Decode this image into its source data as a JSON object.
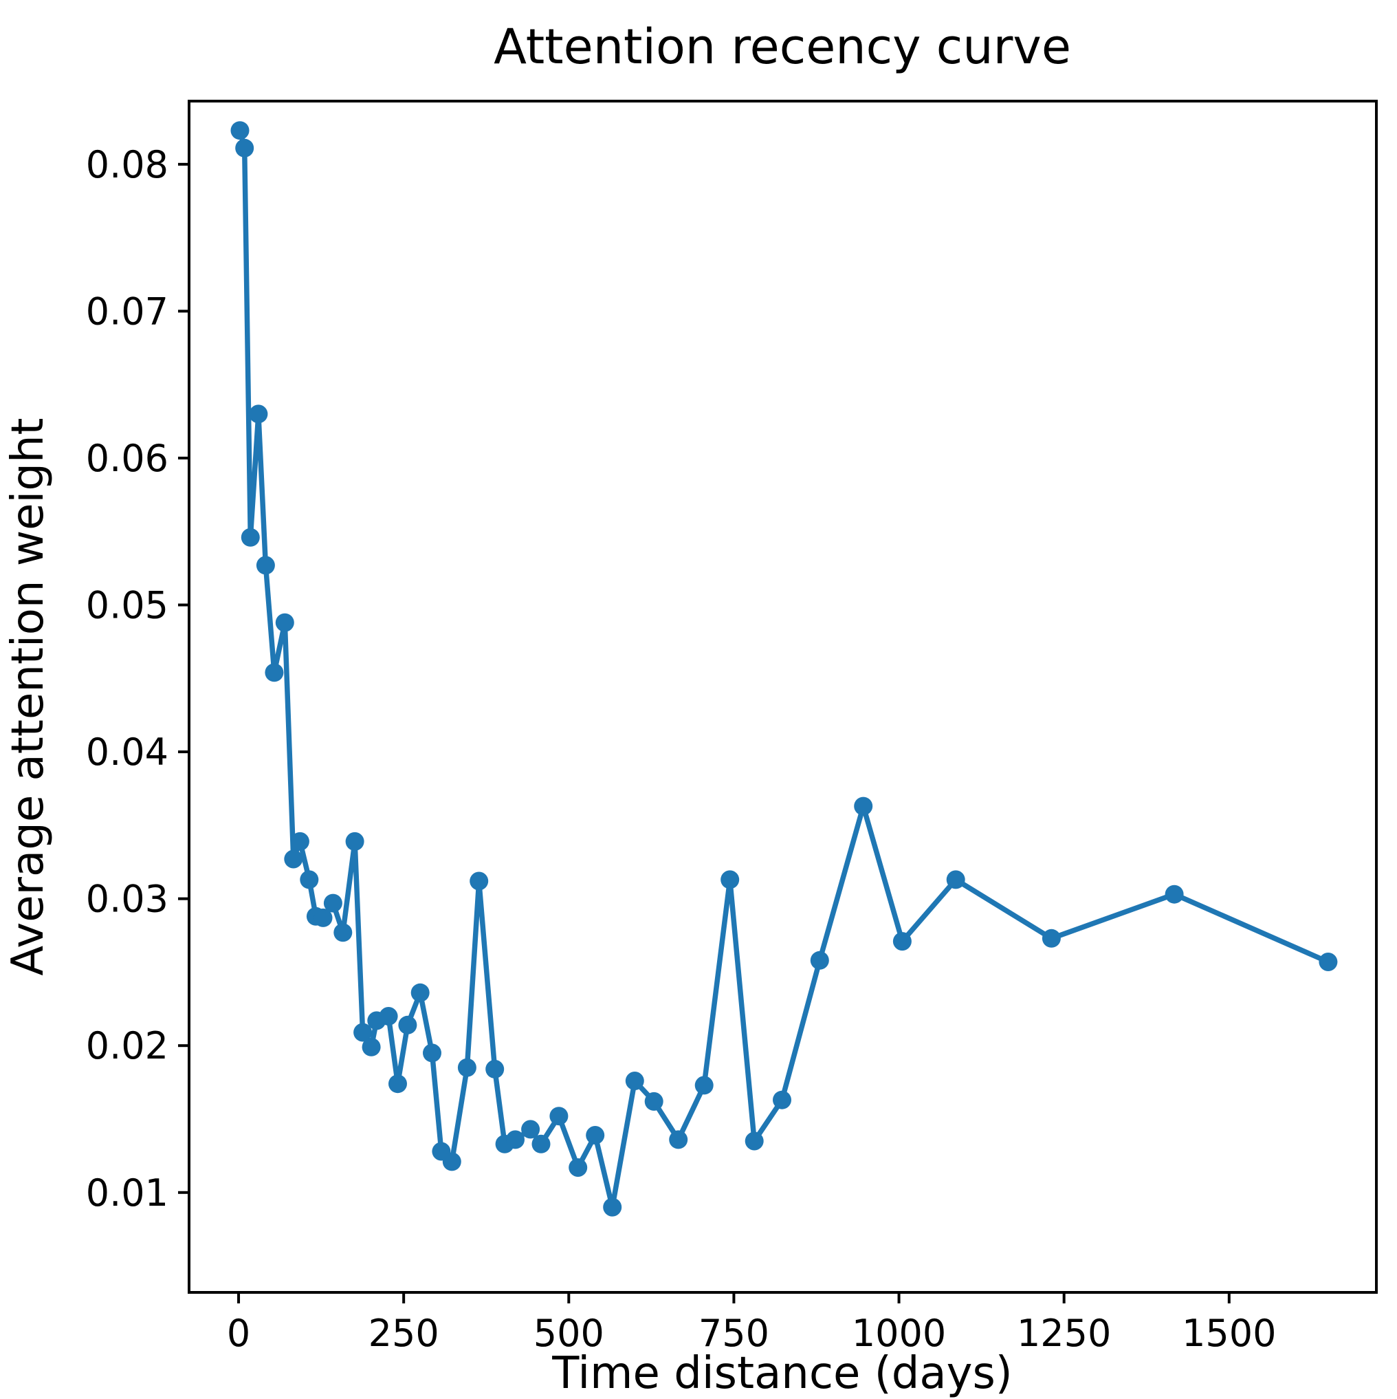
{
  "chart_data": {
    "type": "line",
    "title": "Attention recency curve",
    "xlabel": "Time distance (days)",
    "ylabel": "Average attention weight",
    "series_color": "#1f77b4",
    "marker": "circle",
    "grid": false,
    "legend": "none",
    "xlim": [
      -75,
      1723
    ],
    "ylim": [
      0.0032,
      0.0843
    ],
    "x_ticks": [
      0,
      250,
      500,
      750,
      1000,
      1250,
      1500
    ],
    "x_tick_labels": [
      "0",
      "250",
      "500",
      "750",
      "1000",
      "1250",
      "1500"
    ],
    "y_ticks": [
      0.01,
      0.02,
      0.03,
      0.04,
      0.05,
      0.06,
      0.07,
      0.08
    ],
    "y_tick_labels": [
      "0.01",
      "0.02",
      "0.03",
      "0.04",
      "0.05",
      "0.06",
      "0.07",
      "0.08"
    ],
    "x": [
      2,
      9,
      18,
      30,
      41,
      54,
      70,
      83,
      93,
      107,
      117,
      128,
      143,
      158,
      176,
      188,
      201,
      209,
      227,
      241,
      256,
      275,
      293,
      307,
      323,
      346,
      364,
      388,
      403,
      419,
      442,
      458,
      485,
      514,
      540,
      566,
      600,
      629,
      666,
      705,
      744,
      781,
      823,
      880,
      946,
      1005,
      1086,
      1231,
      1417,
      1650
    ],
    "y": [
      0.0823,
      0.0811,
      0.0546,
      0.063,
      0.0527,
      0.0454,
      0.0488,
      0.0327,
      0.0339,
      0.0313,
      0.0288,
      0.0287,
      0.0297,
      0.0277,
      0.0339,
      0.0209,
      0.0199,
      0.0217,
      0.022,
      0.0174,
      0.0214,
      0.0236,
      0.0195,
      0.0128,
      0.0121,
      0.0185,
      0.0312,
      0.0184,
      0.0133,
      0.0136,
      0.0143,
      0.0133,
      0.0152,
      0.0117,
      0.0139,
      0.009,
      0.0176,
      0.0162,
      0.0136,
      0.0173,
      0.0313,
      0.0135,
      0.0163,
      0.0258,
      0.0363,
      0.0271,
      0.0313,
      0.0273,
      0.0303,
      0.0257
    ]
  }
}
